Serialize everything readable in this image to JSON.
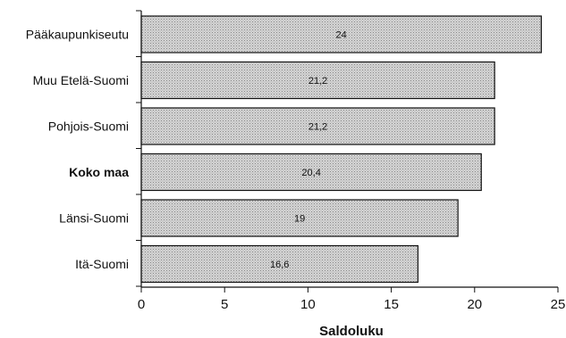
{
  "chart_data": {
    "type": "bar",
    "orientation": "horizontal",
    "categories": [
      "Pääkaupunkiseutu",
      "Muu Etelä-Suomi",
      "Pohjois-Suomi",
      "Koko maa",
      "Länsi-Suomi",
      "Itä-Suomi"
    ],
    "values": [
      24,
      21.2,
      21.2,
      20.4,
      19,
      16.6
    ],
    "value_labels": [
      "24",
      "21,2",
      "21,2",
      "20,4",
      "19",
      "16,6"
    ],
    "highlighted_category": "Koko maa",
    "xlabel": "Saldoluku",
    "xlim": [
      0,
      25
    ],
    "xticks": [
      0,
      5,
      10,
      15,
      20,
      25
    ],
    "grid": false,
    "bar_color": "#d0d0d0",
    "bar_pattern": "dotted-gray"
  }
}
